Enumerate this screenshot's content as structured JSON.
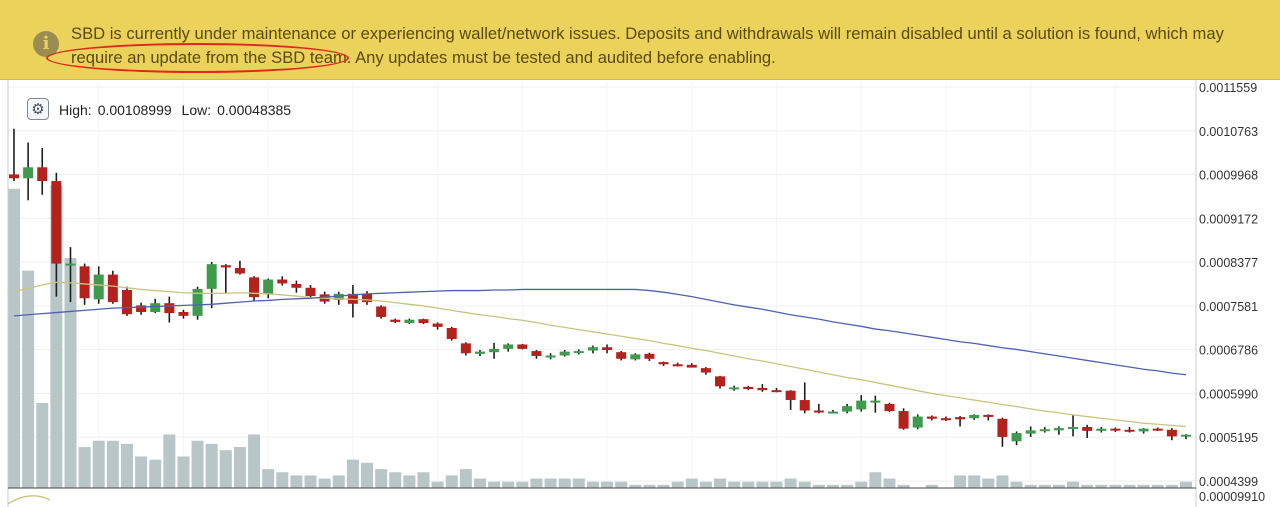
{
  "banner": {
    "icon": "info-icon",
    "text": "SBD is currently under maintenance or experiencing wallet/network issues. Deposits and withdrawals will remain disabled until a solution is found, which may require an update from the SBD team. Any updates must be tested and audited before enabling.",
    "background": "#ebd25a",
    "highlight_color": "#e0261d"
  },
  "toolbar": {
    "settings_icon": "gear-icon"
  },
  "stats": {
    "high_label": "High:",
    "high_value": "0.00108999",
    "low_label": "Low:",
    "low_value": "0.00048385"
  },
  "chart_data": {
    "type": "candlestick",
    "y_ticks": [
      "0.0011559",
      "0.0010763",
      "0.0009968",
      "0.0009172",
      "0.0008377",
      "0.0007581",
      "0.0006786",
      "0.0005990",
      "0.0005195",
      "0.0004399"
    ],
    "y_tick_values": [
      0.0011559,
      0.0010763,
      0.0009968,
      0.0009172,
      0.0008377,
      0.0007581,
      0.0006786,
      0.000599,
      0.0005195,
      0.0004399
    ],
    "sub_panel_tick": "0.00009910",
    "ylim": [
      0.0004399,
      0.0011559
    ],
    "grid": true,
    "colors": {
      "up": "#3f9a4e",
      "down": "#b3221c",
      "wick": "#1e1e1e",
      "volume": "#b9c6c8",
      "ma_fast": "#c9c47e",
      "ma_slow": "#4f61b3"
    },
    "candles": [
      {
        "o": 0.000997,
        "h": 0.00108,
        "l": 0.000985,
        "c": 0.00099
      },
      {
        "o": 0.00099,
        "h": 0.001055,
        "l": 0.00095,
        "c": 0.00101
      },
      {
        "o": 0.00101,
        "h": 0.001045,
        "l": 0.00096,
        "c": 0.000985
      },
      {
        "o": 0.000985,
        "h": 0.001,
        "l": 0.000775,
        "c": 0.000835
      },
      {
        "o": 0.000835,
        "h": 0.000865,
        "l": 0.000765,
        "c": 0.000835
      },
      {
        "o": 0.00083,
        "h": 0.000835,
        "l": 0.00076,
        "c": 0.000772
      },
      {
        "o": 0.00077,
        "h": 0.00083,
        "l": 0.000762,
        "c": 0.000815
      },
      {
        "o": 0.000815,
        "h": 0.000822,
        "l": 0.000762,
        "c": 0.000765
      },
      {
        "o": 0.000787,
        "h": 0.000793,
        "l": 0.00074,
        "c": 0.000743
      },
      {
        "o": 0.000759,
        "h": 0.000764,
        "l": 0.000742,
        "c": 0.000747
      },
      {
        "o": 0.000747,
        "h": 0.000771,
        "l": 0.000745,
        "c": 0.000763
      },
      {
        "o": 0.000763,
        "h": 0.000775,
        "l": 0.000728,
        "c": 0.000745
      },
      {
        "o": 0.000747,
        "h": 0.000751,
        "l": 0.000735,
        "c": 0.00074
      },
      {
        "o": 0.00074,
        "h": 0.000793,
        "l": 0.000733,
        "c": 0.000789
      },
      {
        "o": 0.000789,
        "h": 0.000838,
        "l": 0.000754,
        "c": 0.000834
      },
      {
        "o": 0.000832,
        "h": 0.000834,
        "l": 0.000782,
        "c": 0.000828
      },
      {
        "o": 0.000827,
        "h": 0.00084,
        "l": 0.000815,
        "c": 0.000817
      },
      {
        "o": 0.00081,
        "h": 0.000812,
        "l": 0.000767,
        "c": 0.000774
      },
      {
        "o": 0.000779,
        "h": 0.000808,
        "l": 0.000772,
        "c": 0.000806
      },
      {
        "o": 0.000806,
        "h": 0.000812,
        "l": 0.000795,
        "c": 0.000799
      },
      {
        "o": 0.000798,
        "h": 0.000804,
        "l": 0.000782,
        "c": 0.000791
      },
      {
        "o": 0.000791,
        "h": 0.000796,
        "l": 0.000771,
        "c": 0.000776
      },
      {
        "o": 0.000779,
        "h": 0.000784,
        "l": 0.000762,
        "c": 0.000766
      },
      {
        "o": 0.000769,
        "h": 0.000784,
        "l": 0.00076,
        "c": 0.00078
      },
      {
        "o": 0.00078,
        "h": 0.000796,
        "l": 0.000737,
        "c": 0.000762
      },
      {
        "o": 0.00078,
        "h": 0.000785,
        "l": 0.00076,
        "c": 0.000765
      },
      {
        "o": 0.000757,
        "h": 0.000759,
        "l": 0.000735,
        "c": 0.000738
      },
      {
        "o": 0.000733,
        "h": 0.000735,
        "l": 0.000727,
        "c": 0.000729
      },
      {
        "o": 0.000727,
        "h": 0.000735,
        "l": 0.000725,
        "c": 0.000733
      },
      {
        "o": 0.000734,
        "h": 0.000735,
        "l": 0.000725,
        "c": 0.000727
      },
      {
        "o": 0.000726,
        "h": 0.000728,
        "l": 0.000715,
        "c": 0.00072
      },
      {
        "o": 0.000718,
        "h": 0.00072,
        "l": 0.000695,
        "c": 0.000698
      },
      {
        "o": 0.00069,
        "h": 0.000692,
        "l": 0.000668,
        "c": 0.000672
      },
      {
        "o": 0.000671,
        "h": 0.000678,
        "l": 0.000667,
        "c": 0.000675
      },
      {
        "o": 0.000674,
        "h": 0.000691,
        "l": 0.000662,
        "c": 0.00068
      },
      {
        "o": 0.00068,
        "h": 0.00069,
        "l": 0.000675,
        "c": 0.000688
      },
      {
        "o": 0.000688,
        "h": 0.000689,
        "l": 0.000679,
        "c": 0.00068
      },
      {
        "o": 0.000676,
        "h": 0.000678,
        "l": 0.000662,
        "c": 0.000667
      },
      {
        "o": 0.000667,
        "h": 0.000672,
        "l": 0.000661,
        "c": 0.000668
      },
      {
        "o": 0.000668,
        "h": 0.000678,
        "l": 0.000666,
        "c": 0.000675
      },
      {
        "o": 0.000674,
        "h": 0.000679,
        "l": 0.00067,
        "c": 0.000676
      },
      {
        "o": 0.000677,
        "h": 0.000686,
        "l": 0.000672,
        "c": 0.000683
      },
      {
        "o": 0.000683,
        "h": 0.000688,
        "l": 0.000672,
        "c": 0.000678
      },
      {
        "o": 0.000674,
        "h": 0.000676,
        "l": 0.000659,
        "c": 0.000662
      },
      {
        "o": 0.000661,
        "h": 0.000672,
        "l": 0.000659,
        "c": 0.00067
      },
      {
        "o": 0.000671,
        "h": 0.000673,
        "l": 0.000658,
        "c": 0.000662
      },
      {
        "o": 0.000656,
        "h": 0.000657,
        "l": 0.000649,
        "c": 0.000652
      },
      {
        "o": 0.000652,
        "h": 0.000655,
        "l": 0.000648,
        "c": 0.000649
      },
      {
        "o": 0.000651,
        "h": 0.000654,
        "l": 0.000646,
        "c": 0.000646
      },
      {
        "o": 0.000645,
        "h": 0.000647,
        "l": 0.000633,
        "c": 0.000637
      },
      {
        "o": 0.00063,
        "h": 0.000631,
        "l": 0.000608,
        "c": 0.000612
      },
      {
        "o": 0.000608,
        "h": 0.000613,
        "l": 0.000604,
        "c": 0.00061
      },
      {
        "o": 0.000611,
        "h": 0.000613,
        "l": 0.000605,
        "c": 0.000607
      },
      {
        "o": 0.000609,
        "h": 0.000616,
        "l": 0.000602,
        "c": 0.000605
      },
      {
        "o": 0.000605,
        "h": 0.000609,
        "l": 0.000601,
        "c": 0.000603
      },
      {
        "o": 0.000604,
        "h": 0.000605,
        "l": 0.000569,
        "c": 0.000587
      },
      {
        "o": 0.000587,
        "h": 0.000619,
        "l": 0.000563,
        "c": 0.000568
      },
      {
        "o": 0.000568,
        "h": 0.00058,
        "l": 0.000563,
        "c": 0.000566
      },
      {
        "o": 0.000566,
        "h": 0.000569,
        "l": 0.000563,
        "c": 0.000566
      },
      {
        "o": 0.000566,
        "h": 0.00058,
        "l": 0.000563,
        "c": 0.000576
      },
      {
        "o": 0.00057,
        "h": 0.000596,
        "l": 0.000566,
        "c": 0.000586
      },
      {
        "o": 0.000586,
        "h": 0.000595,
        "l": 0.000564,
        "c": 0.000586
      },
      {
        "o": 0.00058,
        "h": 0.000582,
        "l": 0.000565,
        "c": 0.000567
      },
      {
        "o": 0.000567,
        "h": 0.000572,
        "l": 0.000533,
        "c": 0.000535
      },
      {
        "o": 0.000537,
        "h": 0.000561,
        "l": 0.000534,
        "c": 0.000557
      },
      {
        "o": 0.000557,
        "h": 0.000559,
        "l": 0.00055,
        "c": 0.000553
      },
      {
        "o": 0.000554,
        "h": 0.000557,
        "l": 0.000549,
        "c": 0.000553
      },
      {
        "o": 0.000556,
        "h": 0.000558,
        "l": 0.000539,
        "c": 0.000552
      },
      {
        "o": 0.000554,
        "h": 0.000561,
        "l": 0.000551,
        "c": 0.00056
      },
      {
        "o": 0.00056,
        "h": 0.000561,
        "l": 0.00055,
        "c": 0.000558
      },
      {
        "o": 0.000553,
        "h": 0.000555,
        "l": 0.000502,
        "c": 0.00052
      },
      {
        "o": 0.000512,
        "h": 0.00053,
        "l": 0.000505,
        "c": 0.000527
      },
      {
        "o": 0.000526,
        "h": 0.000539,
        "l": 0.00052,
        "c": 0.000532
      },
      {
        "o": 0.000532,
        "h": 0.000538,
        "l": 0.000528,
        "c": 0.000534
      },
      {
        "o": 0.000532,
        "h": 0.000539,
        "l": 0.000524,
        "c": 0.000536
      },
      {
        "o": 0.000536,
        "h": 0.00056,
        "l": 0.000521,
        "c": 0.000538
      },
      {
        "o": 0.000538,
        "h": 0.000542,
        "l": 0.000518,
        "c": 0.000531
      },
      {
        "o": 0.000531,
        "h": 0.000538,
        "l": 0.000528,
        "c": 0.000535
      },
      {
        "o": 0.000535,
        "h": 0.000537,
        "l": 0.000529,
        "c": 0.000533
      },
      {
        "o": 0.000533,
        "h": 0.000538,
        "l": 0.000528,
        "c": 0.00053
      },
      {
        "o": 0.00053,
        "h": 0.000536,
        "l": 0.000526,
        "c": 0.000535
      },
      {
        "o": 0.000535,
        "h": 0.000537,
        "l": 0.000531,
        "c": 0.000533
      },
      {
        "o": 0.000533,
        "h": 0.000536,
        "l": 0.000514,
        "c": 0.000521
      },
      {
        "o": 0.000521,
        "h": 0.000525,
        "l": 0.000516,
        "c": 0.000524
      }
    ],
    "volume_series": [
      95,
      69,
      27,
      96,
      73,
      13,
      15,
      15,
      14,
      10,
      9,
      17,
      10,
      15,
      14,
      12,
      13,
      17,
      6,
      5,
      4,
      4,
      3,
      4,
      9,
      8,
      6,
      5,
      4,
      5,
      2,
      4,
      6,
      3,
      2,
      2,
      2,
      3,
      3,
      3,
      3,
      2,
      2,
      2,
      1,
      1,
      1,
      2,
      3,
      2,
      3,
      2,
      2,
      2,
      2,
      3,
      2,
      1,
      1,
      1,
      2,
      5,
      3,
      1,
      0,
      1,
      0,
      4,
      4,
      3,
      4,
      2,
      1,
      1,
      1,
      2,
      1,
      1,
      1,
      1,
      1,
      1,
      1,
      2
    ],
    "ma_fast": [
      0.000784,
      0.00079,
      0.000796,
      0.000801,
      0.0008,
      0.000798,
      0.000796,
      0.000794,
      0.000791,
      0.000788,
      0.000786,
      0.000784,
      0.000782,
      0.000781,
      0.000781,
      0.000781,
      0.000782,
      0.000781,
      0.00078,
      0.000778,
      0.000776,
      0.000773,
      0.000772,
      0.000771,
      0.00077,
      0.000769,
      0.000767,
      0.000764,
      0.000761,
      0.000758,
      0.000754,
      0.00075,
      0.000746,
      0.000742,
      0.000739,
      0.000735,
      0.000732,
      0.000728,
      0.000723,
      0.000719,
      0.000715,
      0.000711,
      0.000707,
      0.000703,
      0.000699,
      0.000695,
      0.00069,
      0.000686,
      0.000681,
      0.000677,
      0.000672,
      0.000667,
      0.000662,
      0.000658,
      0.000653,
      0.000648,
      0.000643,
      0.000638,
      0.000633,
      0.000628,
      0.000624,
      0.000619,
      0.000614,
      0.000609,
      0.000604,
      0.000599,
      0.000595,
      0.000591,
      0.000587,
      0.000583,
      0.000579,
      0.000575,
      0.000571,
      0.000567,
      0.000564,
      0.00056,
      0.000557,
      0.000554,
      0.000551,
      0.000548,
      0.000545,
      0.000543,
      0.000541,
      0.000539
    ],
    "ma_slow": [
      0.00074,
      0.000742,
      0.000744,
      0.000746,
      0.000748,
      0.00075,
      0.000752,
      0.000754,
      0.000755,
      0.000756,
      0.000757,
      0.000758,
      0.000759,
      0.00076,
      0.000761,
      0.000763,
      0.000765,
      0.000767,
      0.000768,
      0.00077,
      0.000771,
      0.000772,
      0.000774,
      0.000776,
      0.000778,
      0.00078,
      0.000781,
      0.000782,
      0.000783,
      0.000784,
      0.000785,
      0.000786,
      0.000786,
      0.000786,
      0.000787,
      0.000787,
      0.000788,
      0.000788,
      0.000788,
      0.000788,
      0.000788,
      0.000788,
      0.000788,
      0.000788,
      0.000788,
      0.000786,
      0.000783,
      0.000779,
      0.000775,
      0.00077,
      0.000765,
      0.00076,
      0.000756,
      0.000752,
      0.000747,
      0.000742,
      0.000738,
      0.000734,
      0.000729,
      0.000725,
      0.000721,
      0.000716,
      0.000713,
      0.000709,
      0.000705,
      0.000701,
      0.000697,
      0.000693,
      0.00069,
      0.000686,
      0.000682,
      0.000679,
      0.000675,
      0.000671,
      0.000667,
      0.000663,
      0.000659,
      0.000655,
      0.000651,
      0.000647,
      0.000643,
      0.00064,
      0.000636,
      0.000633
    ]
  }
}
